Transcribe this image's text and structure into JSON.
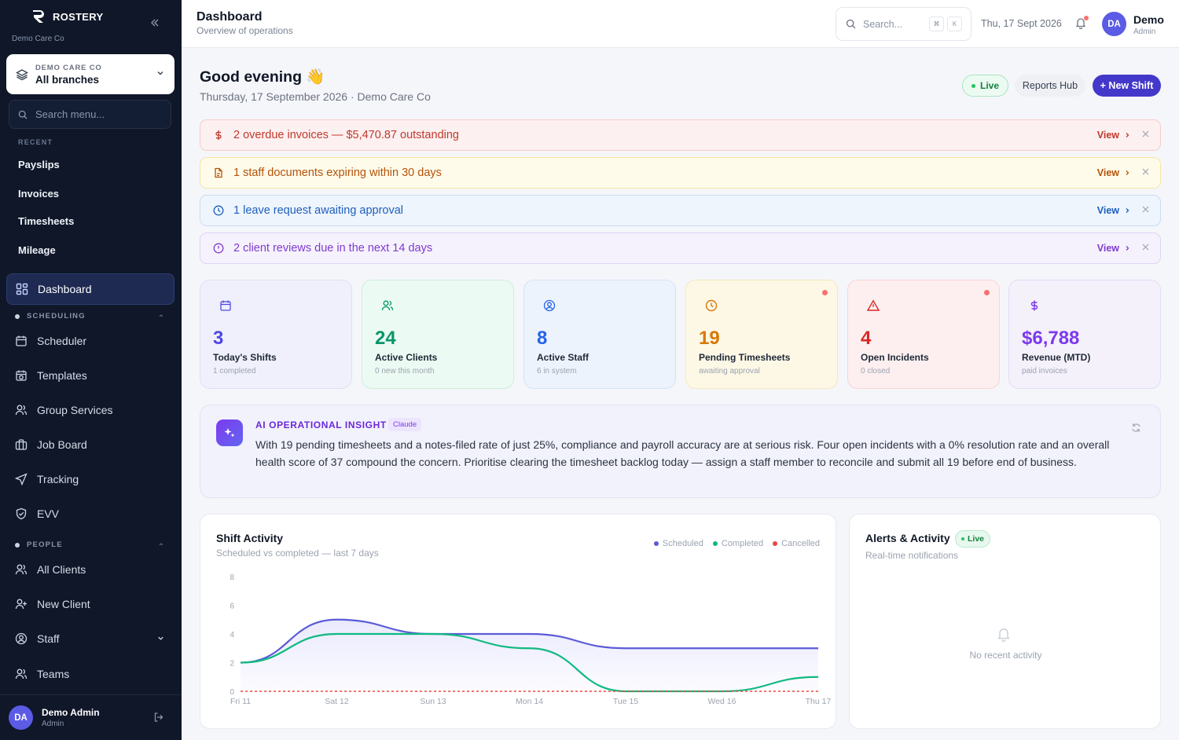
{
  "sidebar": {
    "brand": "ROSTERY",
    "org": "Demo Care Co",
    "branch": {
      "org": "DEMO CARE CO",
      "label": "All branches"
    },
    "search_placeholder": "Search menu...",
    "recent_title": "RECENT",
    "recent": [
      "Payslips",
      "Invoices",
      "Timesheets",
      "Mileage"
    ],
    "dashboard": "Dashboard",
    "scheduling_title": "SCHEDULING",
    "scheduling": [
      "Scheduler",
      "Templates",
      "Group Services",
      "Job Board",
      "Tracking",
      "EVV"
    ],
    "people_title": "PEOPLE",
    "people": [
      "All Clients",
      "New Client",
      "Staff",
      "Teams"
    ],
    "user": {
      "initials": "DA",
      "name": "Demo Admin",
      "role": "Admin"
    }
  },
  "topbar": {
    "title": "Dashboard",
    "subtitle": "Overview of operations",
    "search_placeholder": "Search...",
    "kbd": [
      "⌘",
      "K"
    ],
    "date": "Thu, 17 Sept 2026",
    "user": {
      "initials": "DA",
      "name": "Demo",
      "role": "Admin"
    }
  },
  "main": {
    "greeting": "Good evening 👋",
    "greeting_sub": "Thursday, 17 September 2026 · Demo Care Co",
    "live": "Live",
    "reports": "Reports Hub",
    "new_shift": "+ New Shift",
    "view": "View",
    "alerts": [
      {
        "text": "2 overdue invoices — $5,470.87 outstanding",
        "icon": "dollar-icon",
        "color": "#c0392b"
      },
      {
        "text": "1 staff documents expiring within 30 days",
        "icon": "document-icon",
        "color": "#b45309"
      },
      {
        "text": "1 leave request awaiting approval",
        "icon": "clock-icon",
        "color": "#1d5fbf"
      },
      {
        "text": "2 client reviews due in the next 14 days",
        "icon": "info-icon",
        "color": "#7e3ccf"
      }
    ],
    "stats": [
      {
        "value": "3",
        "label": "Today's Shifts",
        "sub": "1 completed",
        "icon": "calendar-icon",
        "color": "#4f46e5"
      },
      {
        "value": "24",
        "label": "Active Clients",
        "sub": "0 new this month",
        "icon": "users-icon",
        "color": "#059669"
      },
      {
        "value": "8",
        "label": "Active Staff",
        "sub": "6 in system",
        "icon": "user-circle-icon",
        "color": "#2563eb"
      },
      {
        "value": "19",
        "label": "Pending Timesheets",
        "sub": "awaiting approval",
        "icon": "clock-icon",
        "color": "#d97706"
      },
      {
        "value": "4",
        "label": "Open Incidents",
        "sub": "0 closed",
        "icon": "warning-icon",
        "color": "#dc2626"
      },
      {
        "value": "$6,788",
        "label": "Revenue (MTD)",
        "sub": "paid invoices",
        "icon": "dollar-icon",
        "color": "#7c3aed"
      }
    ],
    "insight": {
      "heading": "AI OPERATIONAL INSIGHT",
      "tag": "Claude",
      "text": "With 19 pending timesheets and a notes-filed rate of just 25%, compliance and payroll accuracy are at serious risk. Four open incidents with a 0% resolution rate and an overall health score of 37 compound the concern. Prioritise clearing the timesheet backlog today — assign a staff member to reconcile and submit all 19 before end of business."
    },
    "activity": {
      "title": "Alerts & Activity",
      "live": "Live",
      "subtitle": "Real-time notifications",
      "empty": "No recent activity"
    }
  },
  "chart_data": {
    "type": "line",
    "title": "Shift Activity",
    "subtitle": "Scheduled vs completed — last 7 days",
    "categories": [
      "Fri 11",
      "Sat 12",
      "Sun 13",
      "Mon 14",
      "Tue 15",
      "Wed 16",
      "Thu 17"
    ],
    "ylim": [
      0,
      8
    ],
    "yticks": [
      0,
      2,
      4,
      6,
      8
    ],
    "series": [
      {
        "name": "Scheduled",
        "color": "#5b5bd6",
        "values": [
          2,
          5,
          4,
          4,
          3,
          3,
          3
        ]
      },
      {
        "name": "Completed",
        "color": "#10b981",
        "values": [
          2,
          4,
          4,
          3,
          0,
          0,
          1
        ]
      },
      {
        "name": "Cancelled",
        "color": "#ef4444",
        "values": [
          0,
          0,
          0,
          0,
          0,
          0,
          0
        ]
      }
    ]
  }
}
